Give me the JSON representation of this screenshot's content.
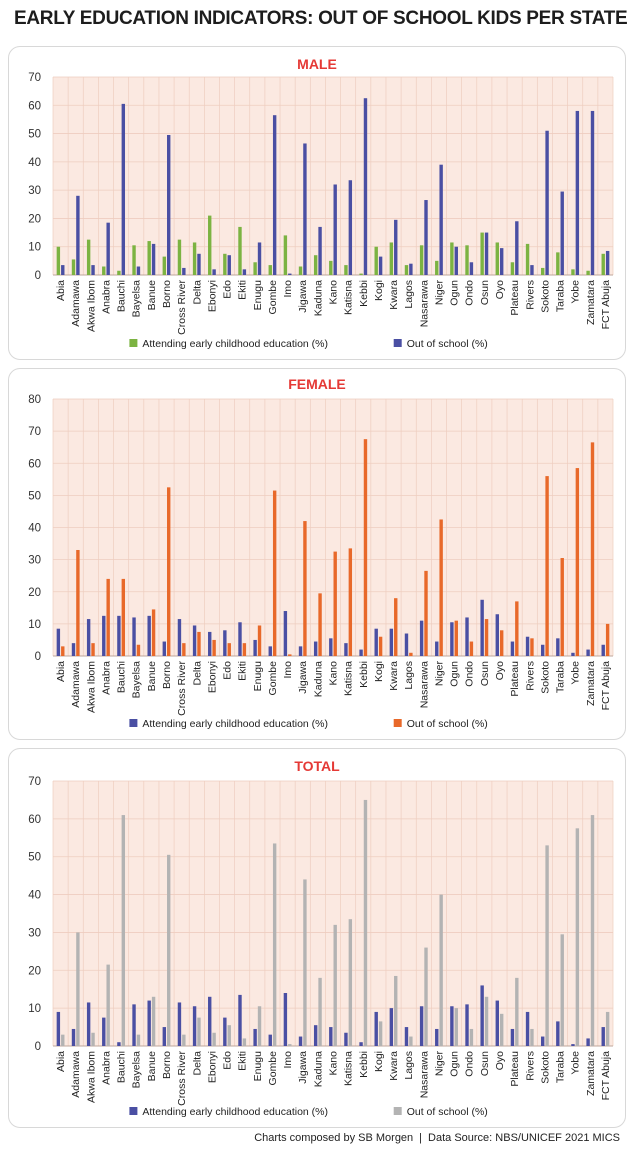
{
  "title": "EARLY EDUCATION INDICATORS: OUT OF SCHOOL KIDS PER STATE",
  "footer": {
    "credit": "Charts composed by SB Morgen",
    "separator": "|",
    "source": "Data Source: NBS/UNICEF 2021 MICS"
  },
  "chart_data": [
    {
      "type": "bar",
      "title": "MALE",
      "ylim": [
        0,
        70
      ],
      "yticks": [
        0,
        10,
        20,
        30,
        40,
        50,
        60,
        70
      ],
      "grid": true,
      "legend": "bottom",
      "categories": [
        "Abia",
        "Adamawa",
        "Akwa Ibom",
        "Anabra",
        "Bauchi",
        "Bayelsa",
        "Banue",
        "Borno",
        "Cross River",
        "Delta",
        "Ebonyi",
        "Edo",
        "Ekiti",
        "Enugu",
        "Gombe",
        "Imo",
        "Jigawa",
        "Kaduna",
        "Kano",
        "Katisna",
        "Kebbi",
        "Kogi",
        "Kwara",
        "Lagos",
        "Nasarawa",
        "Niger",
        "Ogun",
        "Ondo",
        "Osun",
        "Oyo",
        "Plateau",
        "Rivers",
        "Sokoto",
        "Taraba",
        "Yobe",
        "Zamatara",
        "FCT Abuja"
      ],
      "series": [
        {
          "name": "Attending early childhood education (%)",
          "color": "#7cb342",
          "values": [
            10.0,
            5.5,
            12.5,
            3.0,
            1.5,
            10.5,
            12.0,
            6.5,
            12.5,
            11.5,
            21.0,
            7.5,
            17.0,
            4.5,
            3.5,
            14.0,
            3.0,
            7.0,
            5.0,
            3.5,
            0.5,
            10.0,
            11.5,
            3.5,
            10.5,
            5.0,
            11.5,
            10.5,
            15.0,
            11.5,
            4.5,
            11.0,
            2.5,
            8.0,
            2.0,
            1.5,
            7.5
          ]
        },
        {
          "name": "Out of school (%)",
          "color": "#4a4fa3",
          "values": [
            3.5,
            28.0,
            3.5,
            18.5,
            60.5,
            3.0,
            11.0,
            49.5,
            2.5,
            7.5,
            2.0,
            7.0,
            2.0,
            11.5,
            56.5,
            0.5,
            46.5,
            17.0,
            32.0,
            33.5,
            62.5,
            6.5,
            19.5,
            4.0,
            26.5,
            39.0,
            10.0,
            4.5,
            15.0,
            9.5,
            19.0,
            3.5,
            51.0,
            29.5,
            58.0,
            58.0,
            8.5
          ]
        }
      ]
    },
    {
      "type": "bar",
      "title": "FEMALE",
      "ylim": [
        0,
        80
      ],
      "yticks": [
        0,
        10,
        20,
        30,
        40,
        50,
        60,
        70,
        80
      ],
      "grid": true,
      "legend": "bottom",
      "categories": [
        "Abia",
        "Adamawa",
        "Akwa Ibom",
        "Anabra",
        "Bauchi",
        "Bayelsa",
        "Banue",
        "Borno",
        "Cross River",
        "Delta",
        "Ebonyi",
        "Edo",
        "Ekiti",
        "Enugu",
        "Gombe",
        "Imo",
        "Jigawa",
        "Kaduna",
        "Kano",
        "Katisna",
        "Kebbi",
        "Kogi",
        "Kwara",
        "Lagos",
        "Nasarawa",
        "Niger",
        "Ogun",
        "Ondo",
        "Osun",
        "Oyo",
        "Plateau",
        "Rivers",
        "Sokoto",
        "Taraba",
        "Yobe",
        "Zamatara",
        "FCT Abuja"
      ],
      "series": [
        {
          "name": "Attending early childhood education (%)",
          "color": "#4a4fa3",
          "values": [
            8.5,
            4.0,
            11.5,
            12.5,
            12.5,
            12.0,
            12.5,
            4.5,
            11.5,
            9.5,
            7.5,
            8.0,
            10.5,
            5.0,
            3.0,
            14.0,
            3.0,
            4.5,
            5.5,
            4.0,
            2.0,
            8.5,
            8.5,
            7.0,
            11.0,
            4.5,
            10.5,
            12.0,
            17.5,
            13.0,
            4.5,
            6.0,
            3.5,
            5.5,
            1.0,
            2.0,
            3.5
          ]
        },
        {
          "name": "Out of school (%)",
          "color": "#e8692a",
          "values": [
            3.0,
            33.0,
            4.0,
            24.0,
            24.0,
            3.5,
            14.5,
            52.5,
            4.0,
            7.5,
            5.0,
            4.0,
            4.0,
            9.5,
            51.5,
            0.5,
            42.0,
            19.5,
            32.5,
            33.5,
            67.5,
            6.0,
            18.0,
            1.0,
            26.5,
            42.5,
            11.0,
            4.5,
            11.5,
            8.0,
            17.0,
            5.5,
            56.0,
            30.5,
            58.5,
            66.5,
            10.0
          ]
        }
      ]
    },
    {
      "type": "bar",
      "title": "TOTAL",
      "ylim": [
        0,
        70
      ],
      "yticks": [
        0,
        10,
        20,
        30,
        40,
        50,
        60,
        70
      ],
      "grid": true,
      "legend": "bottom",
      "categories": [
        "Abia",
        "Adamawa",
        "Akwa Ibom",
        "Anabra",
        "Bauchi",
        "Bayelsa",
        "Banue",
        "Borno",
        "Cross River",
        "Delta",
        "Ebonyi",
        "Edo",
        "Ekiti",
        "Enugu",
        "Gombe",
        "Imo",
        "Jigawa",
        "Kaduna",
        "Kano",
        "Katisna",
        "Kebbi",
        "Kogi",
        "Kwara",
        "Lagos",
        "Nasarawa",
        "Niger",
        "Ogun",
        "Ondo",
        "Osun",
        "Oyo",
        "Plateau",
        "Rivers",
        "Sokoto",
        "Taraba",
        "Yobe",
        "Zamatara",
        "FCT Abuja"
      ],
      "series": [
        {
          "name": "Attending early childhood education (%)",
          "color": "#4a4fa3",
          "values": [
            9.0,
            4.5,
            11.5,
            7.5,
            1.0,
            11.0,
            12.0,
            5.0,
            11.5,
            10.5,
            13.0,
            7.5,
            13.5,
            4.5,
            3.0,
            14.0,
            2.5,
            5.5,
            5.0,
            3.5,
            1.0,
            9.0,
            10.0,
            5.0,
            10.5,
            4.5,
            10.5,
            11.0,
            16.0,
            12.0,
            4.5,
            9.0,
            2.5,
            6.5,
            0.5,
            2.0,
            5.0
          ]
        },
        {
          "name": "Out of school (%)",
          "color": "#b3b3b3",
          "values": [
            3.0,
            30.0,
            3.5,
            21.5,
            61.0,
            3.0,
            13.0,
            50.5,
            3.0,
            7.5,
            3.5,
            5.5,
            2.0,
            10.5,
            53.5,
            0.5,
            44.0,
            18.0,
            32.0,
            33.5,
            65.0,
            6.5,
            18.5,
            2.5,
            26.0,
            40.0,
            10.0,
            4.5,
            13.0,
            8.5,
            18.0,
            4.5,
            53.0,
            29.5,
            57.5,
            61.0,
            9.0
          ]
        }
      ]
    }
  ]
}
